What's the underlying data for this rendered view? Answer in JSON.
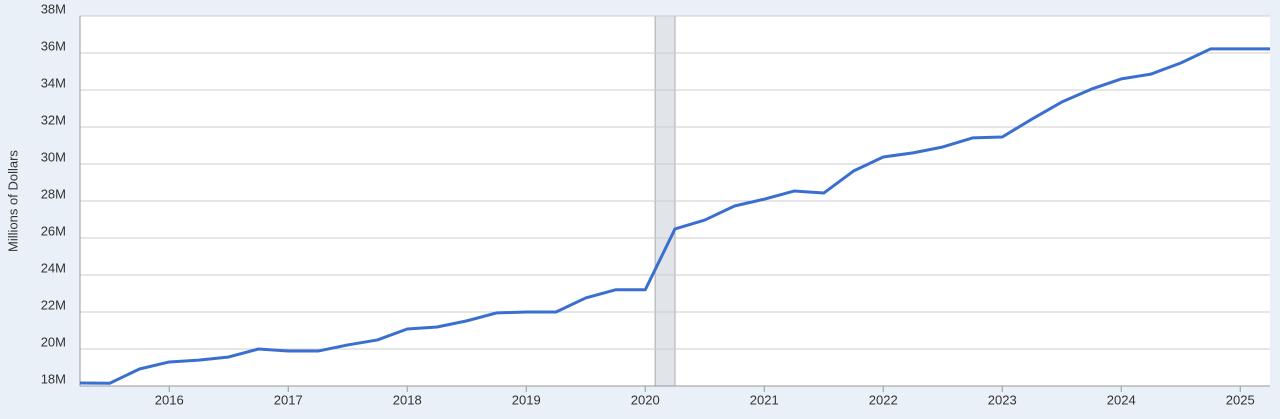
{
  "chart_data": {
    "type": "line",
    "y_label": "Millions of Dollars",
    "x": [
      2015.25,
      2015.5,
      2015.75,
      2016,
      2016.25,
      2016.5,
      2016.75,
      2017,
      2017.25,
      2017.5,
      2017.75,
      2018,
      2018.25,
      2018.5,
      2018.75,
      2019,
      2019.25,
      2019.5,
      2019.75,
      2020,
      2020.25,
      2020.5,
      2020.75,
      2021,
      2021.25,
      2021.5,
      2021.75,
      2022,
      2022.25,
      2022.5,
      2022.75,
      2023,
      2023.25,
      2023.5,
      2023.75,
      2024,
      2024.25,
      2024.5,
      2024.75,
      2025,
      2025.25
    ],
    "series": [
      {
        "color": "#3b6fcf",
        "values": [
          18.16,
          18.15,
          18.92,
          19.3,
          19.4,
          19.57,
          20.0,
          19.89,
          19.89,
          20.22,
          20.49,
          21.08,
          21.19,
          21.52,
          21.95,
          22.0,
          22.0,
          22.76,
          23.2,
          23.2,
          26.49,
          26.97,
          27.73,
          28.1,
          28.54,
          28.43,
          29.62,
          30.38,
          30.6,
          30.92,
          31.41,
          31.46,
          32.43,
          33.35,
          34.05,
          34.6,
          34.86,
          35.46,
          36.22,
          36.22,
          36.22
        ]
      }
    ],
    "recession": [
      2020.083,
      2020.25
    ],
    "xlim": [
      2015.25,
      2025.25
    ],
    "xticks": [
      2016,
      2017,
      2018,
      2019,
      2020,
      2021,
      2022,
      2023,
      2024,
      2025
    ],
    "ylim": [
      18,
      38
    ],
    "yticks": [
      {
        "value": 18,
        "label": "18M"
      },
      {
        "value": 20,
        "label": "20M"
      },
      {
        "value": 22,
        "label": "22M"
      },
      {
        "value": 24,
        "label": "24M"
      },
      {
        "value": 26,
        "label": "26M"
      },
      {
        "value": 28,
        "label": "28M"
      },
      {
        "value": 30,
        "label": "30M"
      },
      {
        "value": 32,
        "label": "32M"
      },
      {
        "value": 34,
        "label": "34M"
      },
      {
        "value": 36,
        "label": "36M"
      },
      {
        "value": 38,
        "label": "38M"
      }
    ],
    "grid": true
  }
}
